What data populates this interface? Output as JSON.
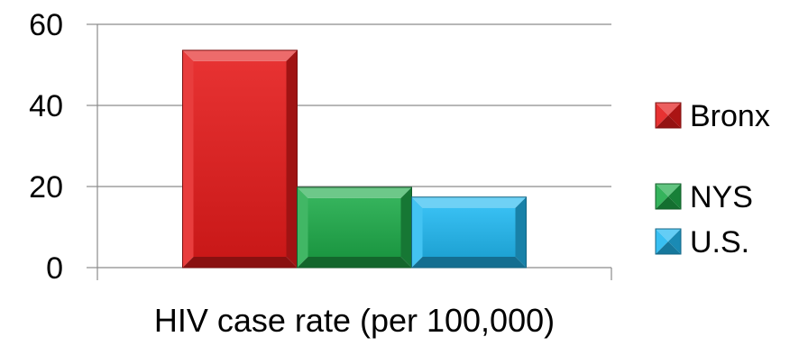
{
  "chart_data": {
    "type": "bar",
    "categories": [
      "HIV case rate (per 100,000)"
    ],
    "series": [
      {
        "name": "Bronx",
        "values": [
          53.6
        ],
        "color": "#e41b1b"
      },
      {
        "name": "NYS",
        "values": [
          19.8
        ],
        "color": "#1faa4a"
      },
      {
        "name": "U.S.",
        "values": [
          17.4
        ],
        "color": "#22b8f0"
      }
    ],
    "title": "",
    "xlabel": "HIV case rate (per 100,000)",
    "ylabel": "",
    "ylim": [
      0,
      60
    ],
    "yticks": [
      0,
      20,
      40,
      60
    ],
    "grid": true,
    "legend_position": "right"
  }
}
